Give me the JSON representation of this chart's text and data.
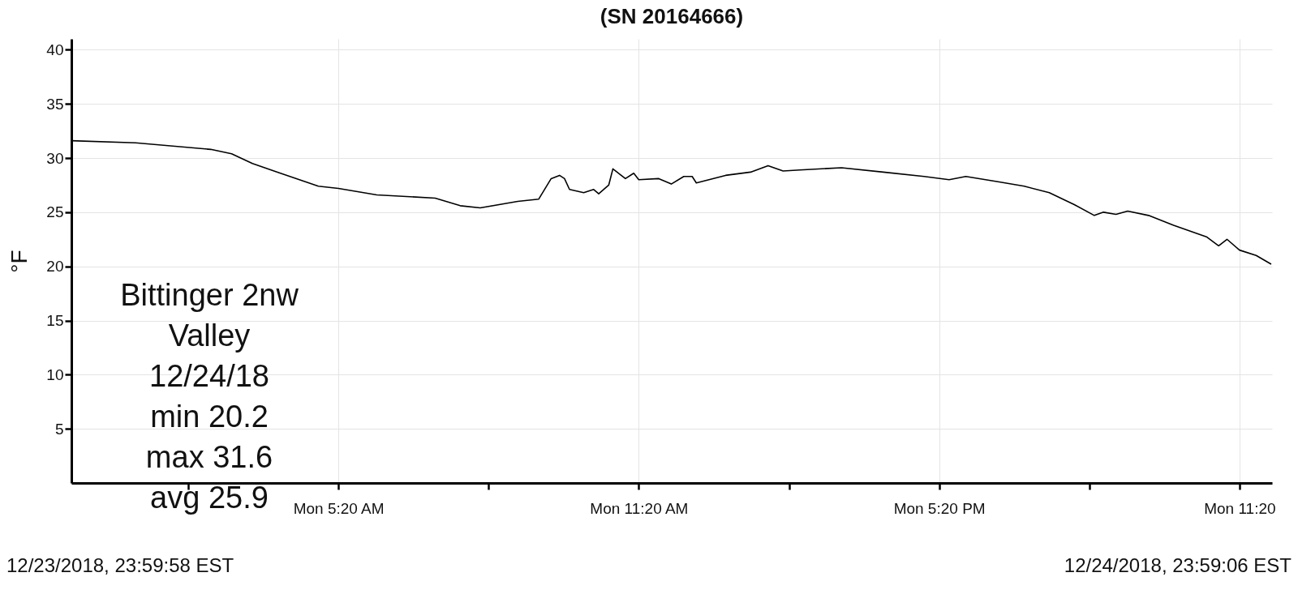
{
  "chart_data": {
    "type": "line",
    "title": "(SN 20164666)",
    "ylabel": "°F",
    "x": [
      "2018-12-24T00:00",
      "2018-12-24T01:17",
      "2018-12-24T02:47",
      "2018-12-24T03:12",
      "2018-12-24T03:37",
      "2018-12-24T04:07",
      "2018-12-24T04:56",
      "2018-12-24T05:20",
      "2018-12-24T06:06",
      "2018-12-24T07:16",
      "2018-12-24T07:46",
      "2018-12-24T08:10",
      "2018-12-24T08:55",
      "2018-12-24T09:20",
      "2018-12-24T09:35",
      "2018-12-24T09:45",
      "2018-12-24T09:51",
      "2018-12-24T09:57",
      "2018-12-24T10:14",
      "2018-12-24T10:26",
      "2018-12-24T10:32",
      "2018-12-24T10:44",
      "2018-12-24T10:49",
      "2018-12-24T11:04",
      "2018-12-24T11:14",
      "2018-12-24T11:20",
      "2018-12-24T11:44",
      "2018-12-24T11:59",
      "2018-12-24T12:14",
      "2018-12-24T12:24",
      "2018-12-24T12:29",
      "2018-12-24T13:04",
      "2018-12-24T13:34",
      "2018-12-24T13:55",
      "2018-12-24T14:13",
      "2018-12-24T14:33",
      "2018-12-24T15:23",
      "2018-12-24T16:13",
      "2018-12-24T17:02",
      "2018-12-24T17:32",
      "2018-12-24T17:52",
      "2018-12-24T18:32",
      "2018-12-24T19:02",
      "2018-12-24T19:32",
      "2018-12-24T20:02",
      "2018-12-24T20:26",
      "2018-12-24T20:37",
      "2018-12-24T20:52",
      "2018-12-24T21:06",
      "2018-12-24T21:31",
      "2018-12-24T22:01",
      "2018-12-24T22:41",
      "2018-12-24T22:55",
      "2018-12-24T23:05",
      "2018-12-24T23:20",
      "2018-12-24T23:40",
      "2018-12-24T23:58"
    ],
    "series": [
      {
        "color": "#000000",
        "values": [
          31.6,
          31.4,
          30.8,
          30.4,
          29.5,
          28.7,
          27.4,
          27.2,
          26.6,
          26.3,
          25.6,
          25.4,
          26.0,
          26.2,
          28.1,
          28.4,
          28.1,
          27.1,
          26.8,
          27.1,
          26.7,
          27.5,
          29.0,
          28.1,
          28.6,
          28.0,
          28.1,
          27.6,
          28.3,
          28.3,
          27.7,
          28.4,
          28.7,
          29.3,
          28.8,
          28.9,
          29.1,
          28.7,
          28.3,
          28.0,
          28.3,
          27.8,
          27.4,
          26.8,
          25.7,
          24.7,
          25.0,
          24.8,
          25.1,
          24.7,
          23.8,
          22.7,
          21.9,
          22.5,
          21.5,
          21.0,
          20.2
        ]
      }
    ],
    "xlim": [
      "2018-12-24T00:00",
      "2018-12-24T23:59"
    ],
    "xticks": [
      {
        "value": "2018-12-24T02:20",
        "label": null
      },
      {
        "value": "2018-12-24T05:20",
        "label": "Mon 5:20 AM"
      },
      {
        "value": "2018-12-24T08:20",
        "label": null
      },
      {
        "value": "2018-12-24T11:20",
        "label": "Mon 11:20 AM"
      },
      {
        "value": "2018-12-24T14:20",
        "label": null
      },
      {
        "value": "2018-12-24T17:20",
        "label": "Mon 5:20 PM"
      },
      {
        "value": "2018-12-24T20:20",
        "label": null
      },
      {
        "value": "2018-12-24T23:20",
        "label": "Mon 11:20"
      }
    ],
    "ylim": [
      0,
      41
    ],
    "yticks": [
      5,
      10,
      15,
      20,
      25,
      30,
      35,
      40
    ],
    "grid": true,
    "marker": "none",
    "line_style": "solid",
    "annotations": [
      "Bittinger 2nw\nValley\n12/24/18\nmin 20.2\nmax 31.6\navg 25.9",
      "12/23/2018, 23:59:58 EST",
      "12/24/2018, 23:59:06 EST"
    ]
  }
}
